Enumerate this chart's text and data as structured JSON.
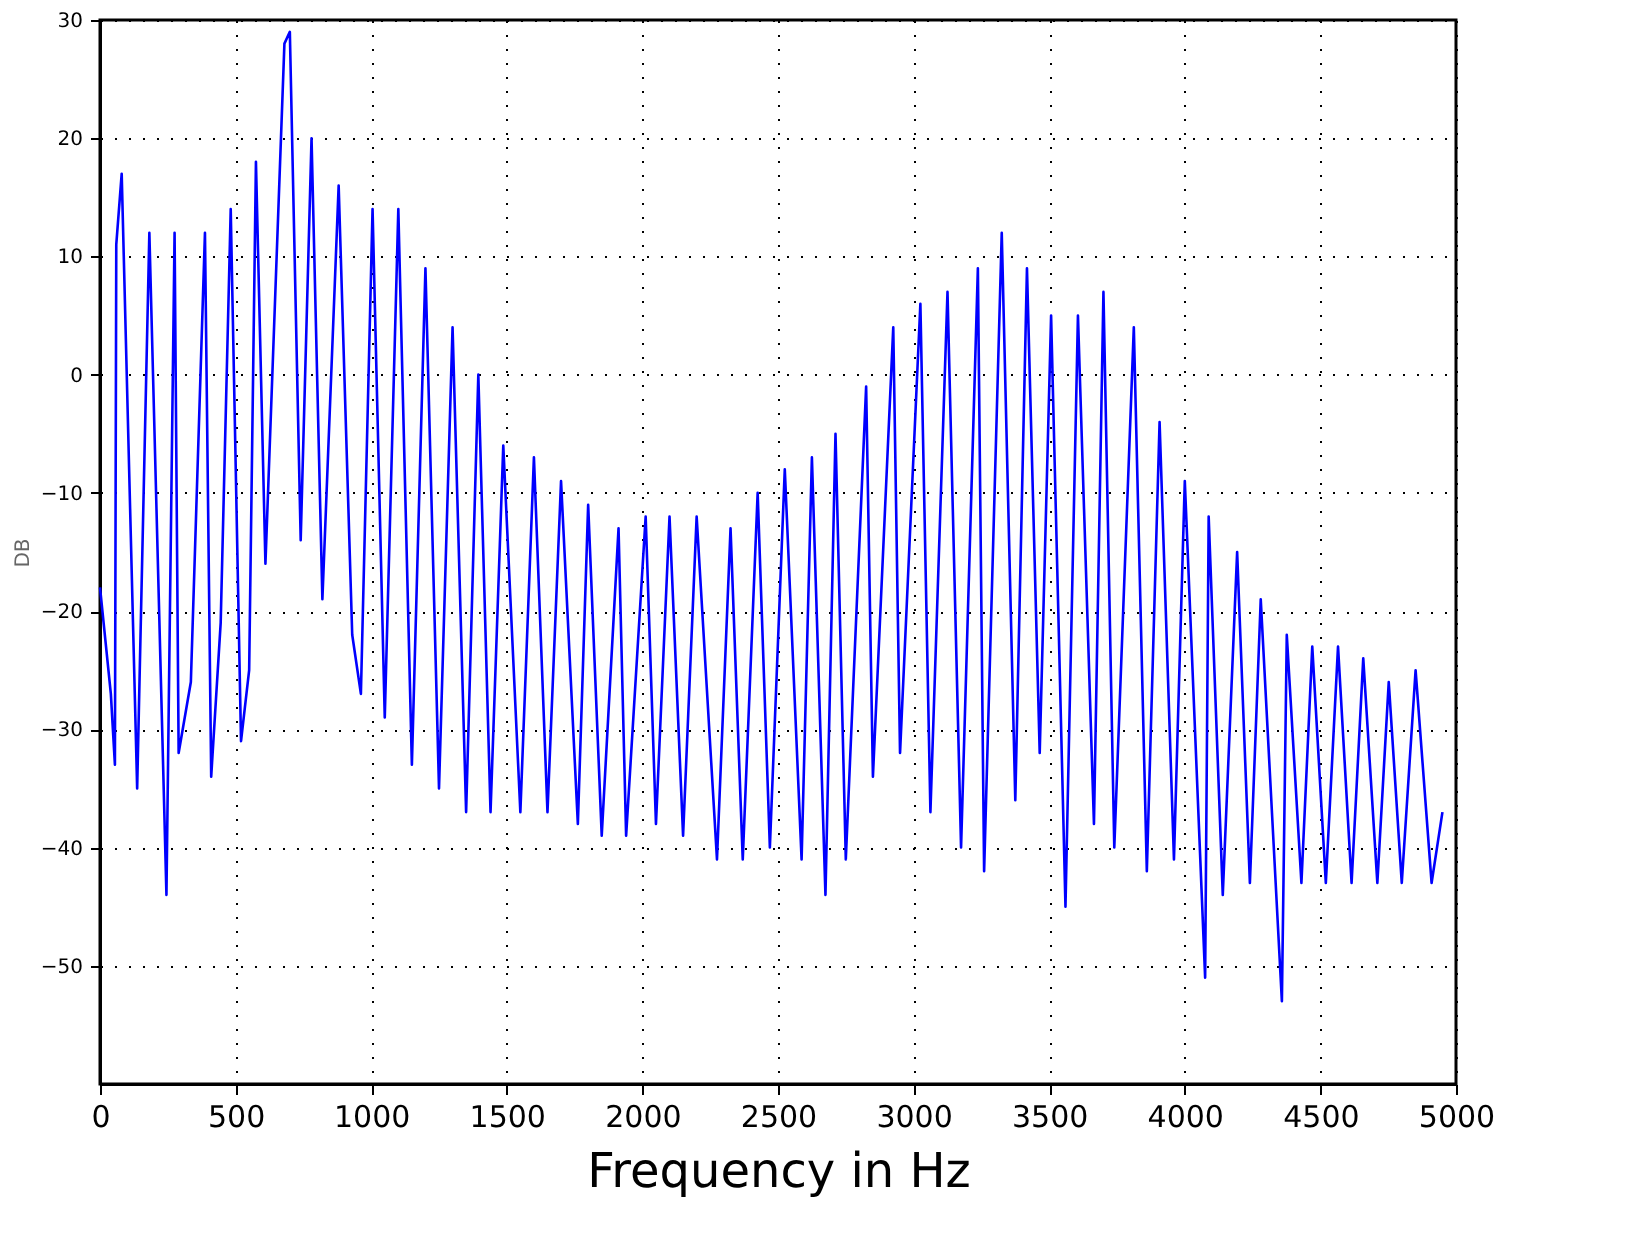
{
  "chart_data": {
    "type": "line",
    "xlabel": "Frequency in Hz",
    "ylabel": "DB",
    "x": [
      0,
      40,
      55,
      60,
      80,
      137,
      182,
      245,
      275,
      290,
      335,
      387,
      410,
      445,
      482,
      520,
      550,
      575,
      610,
      680,
      700,
      740,
      780,
      820,
      880,
      930,
      962,
      1005,
      1050,
      1100,
      1150,
      1200,
      1250,
      1300,
      1350,
      1395,
      1440,
      1487,
      1550,
      1600,
      1650,
      1700,
      1762,
      1800,
      1850,
      1912,
      1940,
      2012,
      2050,
      2100,
      2150,
      2200,
      2275,
      2325,
      2370,
      2425,
      2470,
      2525,
      2587,
      2625,
      2675,
      2712,
      2750,
      2825,
      2850,
      2925,
      2950,
      3025,
      3062,
      3125,
      3175,
      3237,
      3260,
      3325,
      3375,
      3418,
      3465,
      3507,
      3560,
      3606,
      3665,
      3700,
      3740,
      3812,
      3860,
      3907,
      3960,
      4000,
      4075,
      4088,
      4140,
      4193,
      4240,
      4280,
      4358,
      4376,
      4430,
      4470,
      4520,
      4565,
      4615,
      4658,
      4710,
      4752,
      4800,
      4851,
      4910,
      4950
    ],
    "series": [
      {
        "color": "#0000ff",
        "values": [
          -18,
          -27,
          -33,
          11,
          17,
          -35,
          12,
          -44,
          12,
          -32,
          -26,
          12,
          -34,
          -21,
          14,
          -31,
          -25,
          18,
          -16,
          28,
          29,
          -14,
          20,
          -19,
          16,
          -22,
          -27,
          14,
          -29,
          14,
          -33,
          9,
          -35,
          4,
          -37,
          0,
          -37,
          -6,
          -37,
          -7,
          -37,
          -9,
          -38,
          -11,
          -39,
          -13,
          -39,
          -12,
          -38,
          -12,
          -39,
          -12,
          -41,
          -13,
          -41,
          -10,
          -40,
          -8,
          -41,
          -7,
          -44,
          -5,
          -41,
          -1,
          -34,
          4,
          -32,
          6,
          -37,
          7,
          -40,
          9,
          -42,
          12,
          -36,
          9,
          -32,
          5,
          -45,
          5,
          -38,
          7,
          -40,
          4,
          -42,
          -4,
          -41,
          -9,
          -51,
          -12,
          -44,
          -15,
          -43,
          -19,
          -53,
          -22,
          -43,
          -23,
          -43,
          -23,
          -43,
          -24,
          -43,
          -26,
          -43,
          -25,
          -43,
          -37
        ]
      }
    ],
    "xlim": [
      0,
      5000
    ],
    "xticks": [
      0,
      500,
      1000,
      1500,
      2000,
      2500,
      3000,
      3500,
      4000,
      4500,
      5000
    ],
    "ylim": [
      -60,
      30
    ],
    "yticks": [
      30,
      20,
      10,
      0,
      -10,
      -20,
      -30,
      -40,
      -50
    ],
    "grid": true,
    "legend": false,
    "marker": "none",
    "line_style": "solid"
  }
}
